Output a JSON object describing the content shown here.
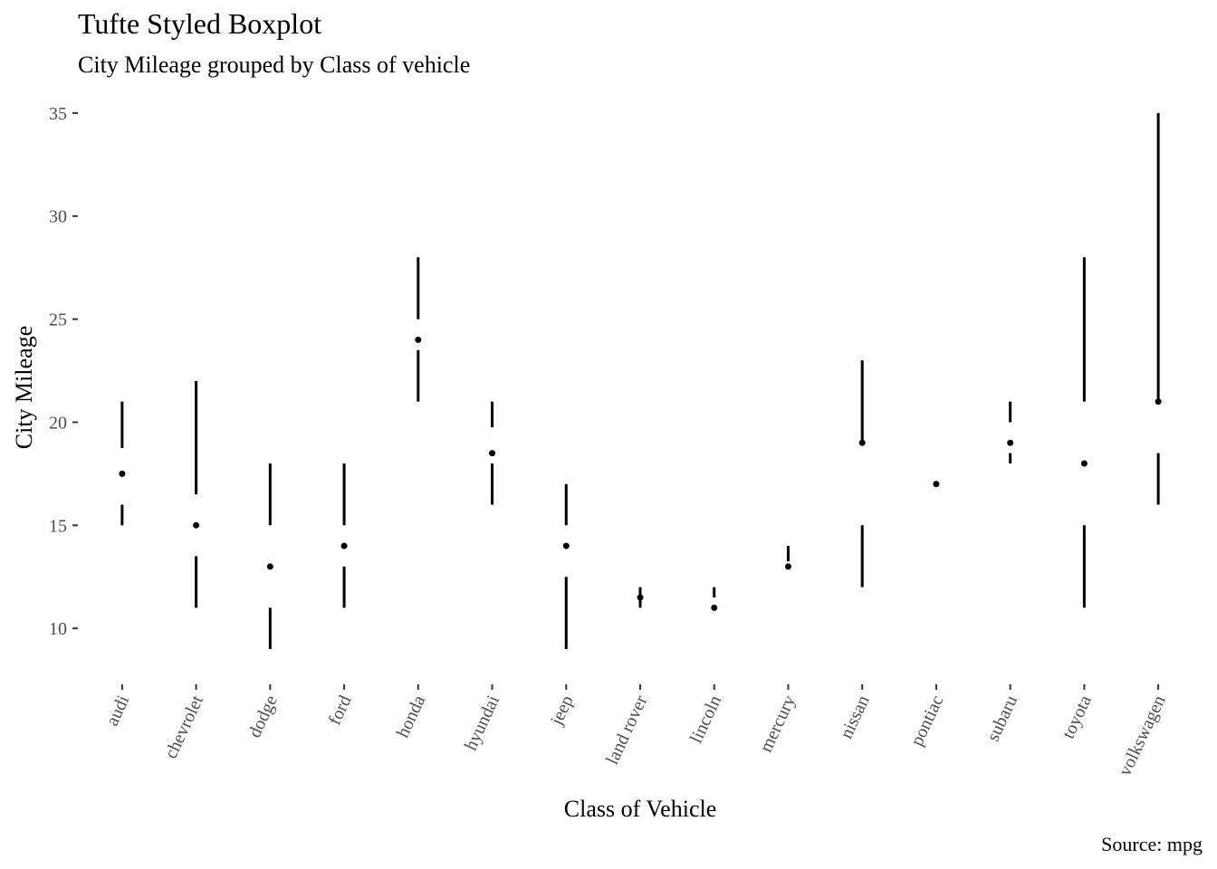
{
  "chart_data": {
    "type": "boxplot",
    "style": "tufte",
    "title": "Tufte Styled Boxplot",
    "subtitle": "City Mileage grouped by Class of vehicle",
    "xlabel": "Class of Vehicle",
    "ylabel": "City Mileage",
    "caption": "Source: mpg",
    "ylim": [
      7.9,
      35.3
    ],
    "yticks": [
      10,
      15,
      20,
      25,
      30,
      35
    ],
    "grid": false,
    "categories": [
      "audi",
      "chevrolet",
      "dodge",
      "ford",
      "honda",
      "hyundai",
      "jeep",
      "land rover",
      "lincoln",
      "mercury",
      "nissan",
      "pontiac",
      "subaru",
      "toyota",
      "volkswagen"
    ],
    "boxes": [
      {
        "category": "audi",
        "min": 15,
        "q1": 16,
        "median": 17.5,
        "q3": 18.75,
        "max": 21
      },
      {
        "category": "chevrolet",
        "min": 11,
        "q1": 13.5,
        "median": 15,
        "q3": 16.5,
        "max": 22
      },
      {
        "category": "dodge",
        "min": 9,
        "q1": 11,
        "median": 13,
        "q3": 15,
        "max": 18
      },
      {
        "category": "ford",
        "min": 11,
        "q1": 13,
        "median": 14,
        "q3": 15,
        "max": 18
      },
      {
        "category": "honda",
        "min": 21,
        "q1": 23.5,
        "median": 24,
        "q3": 25,
        "max": 28
      },
      {
        "category": "hyundai",
        "min": 16,
        "q1": 18,
        "median": 18.5,
        "q3": 19.75,
        "max": 21
      },
      {
        "category": "jeep",
        "min": 9,
        "q1": 12.5,
        "median": 14,
        "q3": 15,
        "max": 17
      },
      {
        "category": "land rover",
        "min": 11,
        "q1": 11.5,
        "median": 11.5,
        "q3": 11.5,
        "max": 12
      },
      {
        "category": "lincoln",
        "min": 11,
        "q1": 11,
        "median": 11,
        "q3": 11.5,
        "max": 12
      },
      {
        "category": "mercury",
        "min": 13,
        "q1": 13,
        "median": 13,
        "q3": 13.25,
        "max": 14
      },
      {
        "category": "nissan",
        "min": 12,
        "q1": 15,
        "median": 19,
        "q3": 19,
        "max": 23
      },
      {
        "category": "pontiac",
        "min": 17,
        "q1": 17,
        "median": 17,
        "q3": 17,
        "max": 17
      },
      {
        "category": "subaru",
        "min": 18,
        "q1": 18.5,
        "median": 19,
        "q3": 20,
        "max": 21
      },
      {
        "category": "toyota",
        "min": 11,
        "q1": 15,
        "median": 18,
        "q3": 21,
        "max": 28
      },
      {
        "category": "volkswagen",
        "min": 16,
        "q1": 18.5,
        "median": 21,
        "q3": 21,
        "max": 35
      }
    ]
  }
}
